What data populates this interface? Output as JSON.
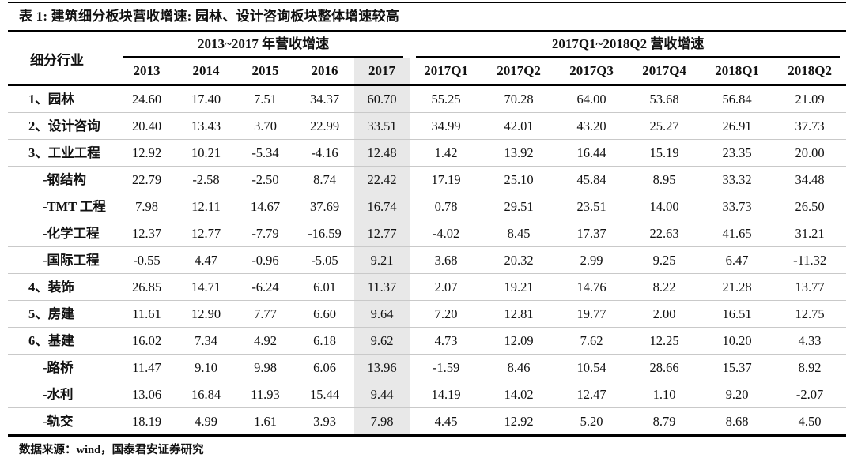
{
  "chart_data": {
    "type": "table",
    "title": "表 1: 建筑细分板块营收增速: 园林、设计咨询板块整体增速较高",
    "row_header_label": "细分行业",
    "column_groups": [
      {
        "label": "2013~2017 年营收增速",
        "span": 5
      },
      {
        "label": "2017Q1~2018Q2 营收增速",
        "span": 6
      }
    ],
    "columns": [
      "2013",
      "2014",
      "2015",
      "2016",
      "2017",
      "2017Q1",
      "2017Q2",
      "2017Q3",
      "2017Q4",
      "2018Q1",
      "2018Q2"
    ],
    "highlighted_column": "2017",
    "rows": [
      {
        "label": "1、园林",
        "indent": false,
        "values": [
          24.6,
          17.4,
          7.51,
          34.37,
          60.7,
          55.25,
          70.28,
          64.0,
          53.68,
          56.84,
          21.09
        ]
      },
      {
        "label": "2、设计咨询",
        "indent": false,
        "values": [
          20.4,
          13.43,
          3.7,
          22.99,
          33.51,
          34.99,
          42.01,
          43.2,
          25.27,
          26.91,
          37.73
        ]
      },
      {
        "label": "3、工业工程",
        "indent": false,
        "values": [
          12.92,
          10.21,
          -5.34,
          -4.16,
          12.48,
          1.42,
          13.92,
          16.44,
          15.19,
          23.35,
          20.0
        ]
      },
      {
        "label": "-钢结构",
        "indent": true,
        "values": [
          22.79,
          -2.58,
          -2.5,
          8.74,
          22.42,
          17.19,
          25.1,
          45.84,
          8.95,
          33.32,
          34.48
        ]
      },
      {
        "label": "-TMT 工程",
        "indent": true,
        "values": [
          7.98,
          12.11,
          14.67,
          37.69,
          16.74,
          0.78,
          29.51,
          23.51,
          14.0,
          33.73,
          26.5
        ]
      },
      {
        "label": "-化学工程",
        "indent": true,
        "values": [
          12.37,
          12.77,
          -7.79,
          -16.59,
          12.77,
          -4.02,
          8.45,
          17.37,
          22.63,
          41.65,
          31.21
        ]
      },
      {
        "label": "-国际工程",
        "indent": true,
        "values": [
          -0.55,
          4.47,
          -0.96,
          -5.05,
          9.21,
          3.68,
          20.32,
          2.99,
          9.25,
          6.47,
          -11.32
        ]
      },
      {
        "label": "4、装饰",
        "indent": false,
        "values": [
          26.85,
          14.71,
          -6.24,
          6.01,
          11.37,
          2.07,
          19.21,
          14.76,
          8.22,
          21.28,
          13.77
        ]
      },
      {
        "label": "5、房建",
        "indent": false,
        "values": [
          11.61,
          12.9,
          7.77,
          6.6,
          9.64,
          7.2,
          12.81,
          19.77,
          2.0,
          16.51,
          12.75
        ]
      },
      {
        "label": "6、基建",
        "indent": false,
        "values": [
          16.02,
          7.34,
          4.92,
          6.18,
          9.62,
          4.73,
          12.09,
          7.62,
          12.25,
          10.2,
          4.33
        ]
      },
      {
        "label": "-路桥",
        "indent": true,
        "values": [
          11.47,
          9.1,
          9.98,
          6.06,
          13.96,
          -1.59,
          8.46,
          10.54,
          28.66,
          15.37,
          8.92
        ]
      },
      {
        "label": "-水利",
        "indent": true,
        "values": [
          13.06,
          16.84,
          11.93,
          15.44,
          9.44,
          14.19,
          14.02,
          12.47,
          1.1,
          9.2,
          -2.07
        ]
      },
      {
        "label": "-轨交",
        "indent": true,
        "values": [
          18.19,
          4.99,
          1.61,
          3.93,
          7.98,
          4.45,
          12.92,
          5.2,
          8.79,
          8.68,
          4.5
        ]
      }
    ],
    "source_note": "数据来源：wind，国泰君安证券研究"
  },
  "styles": {
    "highlight_color": "#e8e8e8",
    "rule_color": "#000000",
    "separator_color": "#c9c9c9",
    "text_color": "#111111"
  }
}
